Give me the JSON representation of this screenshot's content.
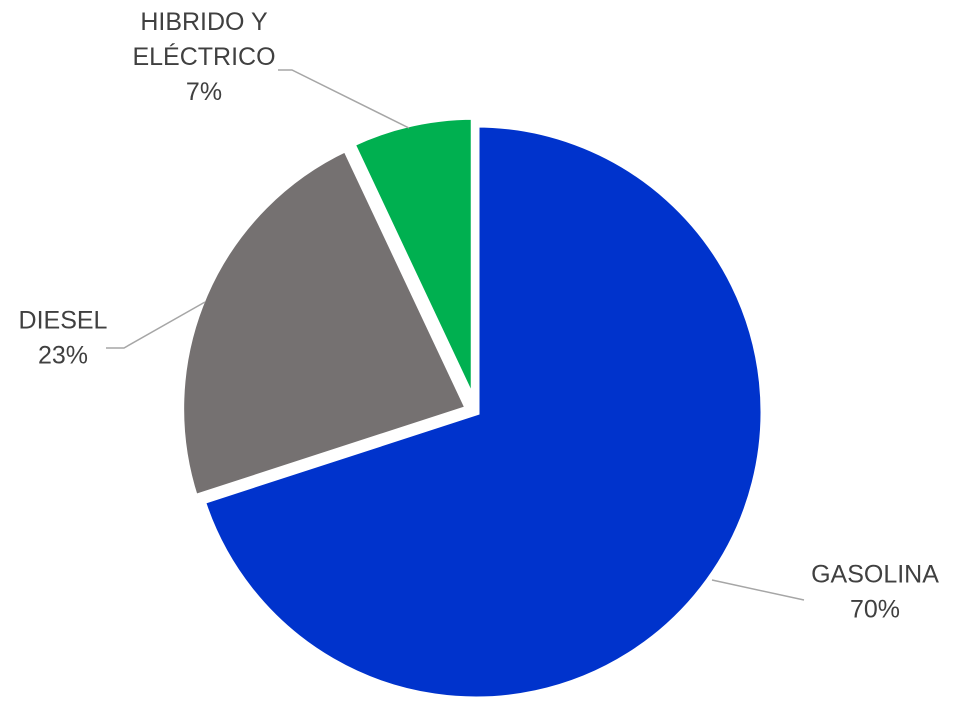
{
  "chart_data": {
    "type": "pie",
    "title": "",
    "slices": [
      {
        "label": "GASOLINA",
        "value": 70,
        "value_label": "70%",
        "color": "#0033cc"
      },
      {
        "label": "DIESEL",
        "value": 23,
        "value_label": "23%",
        "color": "#757171"
      },
      {
        "label_lines": [
          "HIBRIDO Y",
          "ELÉCTRICO"
        ],
        "value": 7,
        "value_label": "7%",
        "color": "#00b050"
      }
    ],
    "start": "12 o'clock",
    "direction": "clockwise",
    "legend": "none",
    "data_labels": "outside with leader lines"
  }
}
